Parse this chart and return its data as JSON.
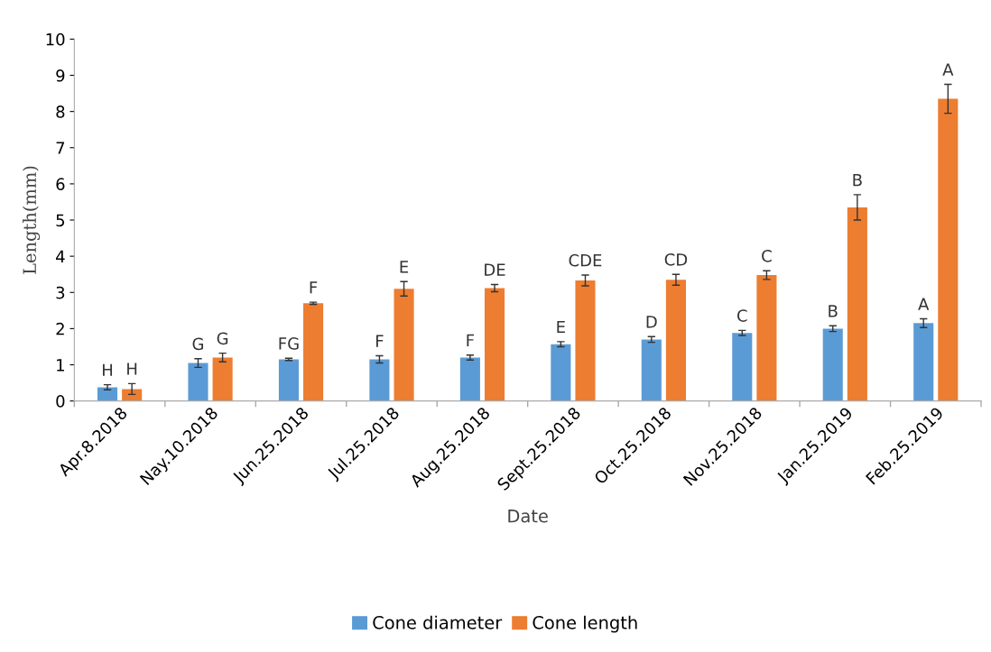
{
  "chart_data": {
    "type": "bar",
    "xlabel": "Date",
    "ylabel": "Length(mm)",
    "categories": [
      "Apr.8.2018",
      "Nay.10.2018",
      "Jun.25.2018",
      "Jul.25.2018",
      "Aug.25.2018",
      "Sept.25.2018",
      "Oct.25.2018",
      "Nov.25.2018",
      "Jan.25.2019",
      "Feb.25.2019"
    ],
    "series": [
      {
        "name": "Cone diameter",
        "color": "#5b9bd5",
        "values": [
          0.38,
          1.05,
          1.15,
          1.15,
          1.2,
          1.57,
          1.7,
          1.88,
          2.0,
          2.15
        ],
        "errors": [
          0.07,
          0.12,
          0.03,
          0.1,
          0.07,
          0.07,
          0.08,
          0.07,
          0.08,
          0.12
        ],
        "value_labels": [
          "H",
          "G",
          "FG",
          "F",
          "F",
          "E",
          "D",
          "C",
          "B",
          "A"
        ]
      },
      {
        "name": "Cone length",
        "color": "#ed7d31",
        "values": [
          0.33,
          1.2,
          2.7,
          3.1,
          3.12,
          3.33,
          3.35,
          3.48,
          5.35,
          8.35
        ],
        "errors": [
          0.15,
          0.12,
          0.03,
          0.2,
          0.1,
          0.15,
          0.15,
          0.12,
          0.35,
          0.4
        ],
        "value_labels": [
          "H",
          "G",
          "F",
          "E",
          "DE",
          "CDE",
          "CD",
          "C",
          "B",
          "A"
        ]
      }
    ],
    "ylim": [
      0,
      10
    ],
    "yticks": [
      0,
      1,
      2,
      3,
      4,
      5,
      6,
      7,
      8,
      9,
      10
    ],
    "grid": false,
    "legend": "bottom"
  }
}
